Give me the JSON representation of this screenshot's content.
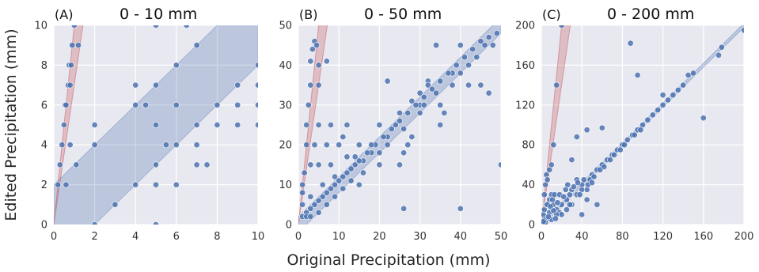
{
  "figure": {
    "ylabel": "Edited Precipitation (mm)",
    "xlabel": "Original Precipitation (mm)",
    "colors": {
      "background": "#e8e8f0",
      "grid": "#ffffff",
      "point": "#4c72b0",
      "blue_band": "#4c72b0",
      "red_band": "#c44e52"
    }
  },
  "chart_data": [
    {
      "type": "scatter",
      "panel_label": "(A)",
      "title": "0 - 10 mm",
      "xlim": [
        0,
        10
      ],
      "ylim": [
        0,
        10
      ],
      "xticks": [
        0,
        2,
        4,
        6,
        8,
        10
      ],
      "yticks": [
        0,
        2,
        4,
        6,
        8,
        10
      ],
      "bands": [
        {
          "color": "blue",
          "description": "y = x ± 2 mm"
        },
        {
          "color": "red",
          "description": "y ≈ 7x to 10x"
        }
      ],
      "points": [
        [
          0.2,
          2
        ],
        [
          0.3,
          3
        ],
        [
          0.4,
          4
        ],
        [
          0.5,
          5
        ],
        [
          0.55,
          6
        ],
        [
          0.6,
          6
        ],
        [
          0.7,
          7
        ],
        [
          0.75,
          8
        ],
        [
          0.8,
          7
        ],
        [
          0.85,
          8
        ],
        [
          0.9,
          9
        ],
        [
          1,
          10
        ],
        [
          1.2,
          9
        ],
        [
          1.1,
          3
        ],
        [
          0.8,
          4
        ],
        [
          0.6,
          2
        ],
        [
          2,
          5
        ],
        [
          2,
          4
        ],
        [
          2,
          0
        ],
        [
          3,
          1
        ],
        [
          4,
          7
        ],
        [
          4,
          6
        ],
        [
          4,
          2
        ],
        [
          4.5,
          6
        ],
        [
          5,
          10
        ],
        [
          5,
          7
        ],
        [
          5,
          5
        ],
        [
          5,
          3
        ],
        [
          5,
          2
        ],
        [
          5,
          0
        ],
        [
          5.5,
          4
        ],
        [
          6,
          8
        ],
        [
          6,
          6
        ],
        [
          6,
          4
        ],
        [
          6,
          2
        ],
        [
          6.5,
          10
        ],
        [
          7,
          9
        ],
        [
          7,
          5
        ],
        [
          7,
          4
        ],
        [
          7,
          3
        ],
        [
          7.5,
          3
        ],
        [
          8,
          6
        ],
        [
          8,
          5
        ],
        [
          9,
          7
        ],
        [
          9,
          6
        ],
        [
          9,
          5
        ],
        [
          10,
          8
        ],
        [
          10,
          7
        ],
        [
          10,
          6
        ],
        [
          10,
          5
        ]
      ]
    },
    {
      "type": "scatter",
      "panel_label": "(B)",
      "title": "0 - 50 mm",
      "xlim": [
        0,
        50
      ],
      "ylim": [
        0,
        50
      ],
      "xticks": [
        0,
        10,
        20,
        30,
        40,
        50
      ],
      "yticks": [
        0,
        10,
        20,
        30,
        40,
        50
      ],
      "bands": [
        {
          "color": "blue",
          "description": "y = x ± 2 mm"
        },
        {
          "color": "red",
          "description": "y ≈ 7x to 10x"
        }
      ],
      "points": [
        [
          1,
          10
        ],
        [
          1,
          8
        ],
        [
          1.5,
          13
        ],
        [
          2,
          20
        ],
        [
          2,
          25
        ],
        [
          2.5,
          30
        ],
        [
          3,
          35
        ],
        [
          3,
          41
        ],
        [
          3.5,
          44
        ],
        [
          4,
          46
        ],
        [
          4.5,
          45
        ],
        [
          5,
          40
        ],
        [
          5,
          35
        ],
        [
          7,
          41
        ],
        [
          1,
          5
        ],
        [
          1,
          2
        ],
        [
          2,
          3
        ],
        [
          3,
          7
        ],
        [
          3,
          15
        ],
        [
          4,
          20
        ],
        [
          5,
          25
        ],
        [
          5,
          15
        ],
        [
          6,
          10
        ],
        [
          7,
          20
        ],
        [
          8,
          15
        ],
        [
          8,
          25
        ],
        [
          9,
          12
        ],
        [
          10,
          20
        ],
        [
          11,
          22
        ],
        [
          12,
          25
        ],
        [
          15,
          20
        ],
        [
          12,
          17
        ],
        [
          15,
          10
        ],
        [
          20,
          25
        ],
        [
          22,
          36
        ],
        [
          25,
          28
        ],
        [
          30,
          30
        ],
        [
          32,
          36
        ],
        [
          34,
          45
        ],
        [
          35,
          25
        ],
        [
          38,
          38
        ],
        [
          40,
          4
        ],
        [
          40,
          45
        ],
        [
          42,
          40
        ],
        [
          45,
          35
        ],
        [
          47,
          33
        ],
        [
          48,
          45
        ],
        [
          50,
          15
        ],
        [
          20,
          15
        ],
        [
          25,
          15
        ],
        [
          26,
          18
        ],
        [
          27,
          20
        ],
        [
          28,
          22
        ],
        [
          26,
          4
        ],
        [
          35,
          30
        ],
        [
          36,
          28
        ],
        [
          38,
          35
        ],
        [
          40,
          38
        ],
        [
          42,
          35
        ],
        [
          28,
          31
        ],
        [
          30,
          33
        ],
        [
          32,
          35
        ],
        [
          24,
          25
        ],
        [
          22,
          22
        ],
        [
          18,
          18
        ],
        [
          16,
          16
        ],
        [
          14,
          15
        ],
        [
          12,
          13
        ],
        [
          10,
          11
        ],
        [
          8,
          9
        ],
        [
          6,
          7
        ],
        [
          4,
          5
        ],
        [
          3,
          4
        ],
        [
          2,
          2
        ],
        [
          5,
          6
        ],
        [
          7,
          8
        ],
        [
          9,
          10
        ],
        [
          11,
          12
        ],
        [
          13,
          14
        ],
        [
          15,
          16
        ],
        [
          17,
          18
        ],
        [
          19,
          20
        ],
        [
          21,
          22
        ],
        [
          23,
          24
        ],
        [
          25,
          26
        ],
        [
          27,
          28
        ],
        [
          29,
          30
        ],
        [
          31,
          32
        ],
        [
          33,
          34
        ],
        [
          35,
          36
        ],
        [
          37,
          38
        ],
        [
          39,
          40
        ],
        [
          41,
          42
        ],
        [
          43,
          44
        ],
        [
          45,
          46
        ],
        [
          47,
          47
        ],
        [
          49,
          48
        ],
        [
          44,
          42
        ],
        [
          46,
          45
        ],
        [
          20,
          18
        ],
        [
          30,
          28
        ],
        [
          14,
          17
        ],
        [
          18,
          20
        ],
        [
          22,
          20
        ],
        [
          26,
          24
        ],
        [
          31,
          30
        ],
        [
          34,
          33
        ],
        [
          16,
          13
        ],
        [
          13,
          11
        ],
        [
          11,
          9
        ],
        [
          9,
          7
        ],
        [
          7,
          5
        ],
        [
          5,
          3
        ],
        [
          3,
          2
        ]
      ]
    },
    {
      "type": "scatter",
      "panel_label": "(C)",
      "title": "0 - 200 mm",
      "xlim": [
        0,
        200
      ],
      "ylim": [
        0,
        200
      ],
      "xticks": [
        0,
        40,
        80,
        120,
        160,
        200
      ],
      "yticks": [
        0,
        40,
        80,
        120,
        160,
        200
      ],
      "bands": [
        {
          "color": "blue",
          "description": "y = x ± 2 mm"
        },
        {
          "color": "red",
          "description": "y ≈ 7x to 10x"
        }
      ],
      "points": [
        [
          3,
          30
        ],
        [
          4,
          40
        ],
        [
          5,
          50
        ],
        [
          6,
          45
        ],
        [
          8,
          55
        ],
        [
          10,
          60
        ],
        [
          12,
          80
        ],
        [
          15,
          140
        ],
        [
          20,
          200
        ],
        [
          2,
          10
        ],
        [
          3,
          15
        ],
        [
          5,
          20
        ],
        [
          8,
          25
        ],
        [
          10,
          30
        ],
        [
          12,
          20
        ],
        [
          15,
          15
        ],
        [
          18,
          12
        ],
        [
          20,
          20
        ],
        [
          25,
          25
        ],
        [
          28,
          30
        ],
        [
          30,
          35
        ],
        [
          35,
          45
        ],
        [
          40,
          40
        ],
        [
          45,
          35
        ],
        [
          50,
          50
        ],
        [
          55,
          55
        ],
        [
          60,
          60
        ],
        [
          65,
          65
        ],
        [
          70,
          70
        ],
        [
          75,
          75
        ],
        [
          80,
          80
        ],
        [
          85,
          85
        ],
        [
          90,
          90
        ],
        [
          95,
          95
        ],
        [
          100,
          100
        ],
        [
          105,
          105
        ],
        [
          110,
          110
        ],
        [
          115,
          115
        ],
        [
          120,
          120
        ],
        [
          125,
          125
        ],
        [
          130,
          130
        ],
        [
          135,
          135
        ],
        [
          140,
          140
        ],
        [
          145,
          150
        ],
        [
          150,
          152
        ],
        [
          175,
          170
        ],
        [
          178,
          178
        ],
        [
          200,
          195
        ],
        [
          88,
          182
        ],
        [
          95,
          150
        ],
        [
          120,
          130
        ],
        [
          160,
          107
        ],
        [
          30,
          65
        ],
        [
          35,
          88
        ],
        [
          40,
          10
        ],
        [
          45,
          95
        ],
        [
          55,
          20
        ],
        [
          60,
          97
        ],
        [
          45,
          25
        ],
        [
          30,
          20
        ],
        [
          20,
          10
        ],
        [
          10,
          5
        ],
        [
          5,
          5
        ],
        [
          15,
          10
        ],
        [
          25,
          15
        ],
        [
          35,
          30
        ],
        [
          40,
          35
        ],
        [
          48,
          45
        ],
        [
          52,
          48
        ],
        [
          58,
          55
        ],
        [
          62,
          58
        ],
        [
          68,
          65
        ],
        [
          72,
          70
        ],
        [
          78,
          75
        ],
        [
          82,
          80
        ],
        [
          92,
          90
        ],
        [
          98,
          95
        ],
        [
          6,
          20
        ],
        [
          8,
          12
        ],
        [
          9,
          18
        ],
        [
          11,
          25
        ],
        [
          13,
          30
        ],
        [
          16,
          22
        ],
        [
          18,
          30
        ],
        [
          22,
          28
        ],
        [
          24,
          35
        ],
        [
          26,
          40
        ],
        [
          28,
          20
        ],
        [
          32,
          38
        ],
        [
          36,
          42
        ],
        [
          38,
          30
        ],
        [
          42,
          45
        ],
        [
          46,
          40
        ],
        [
          50,
          42
        ],
        [
          3,
          5
        ],
        [
          4,
          2
        ],
        [
          2,
          3
        ],
        [
          7,
          8
        ],
        [
          12,
          14
        ],
        [
          14,
          6
        ]
      ]
    }
  ]
}
